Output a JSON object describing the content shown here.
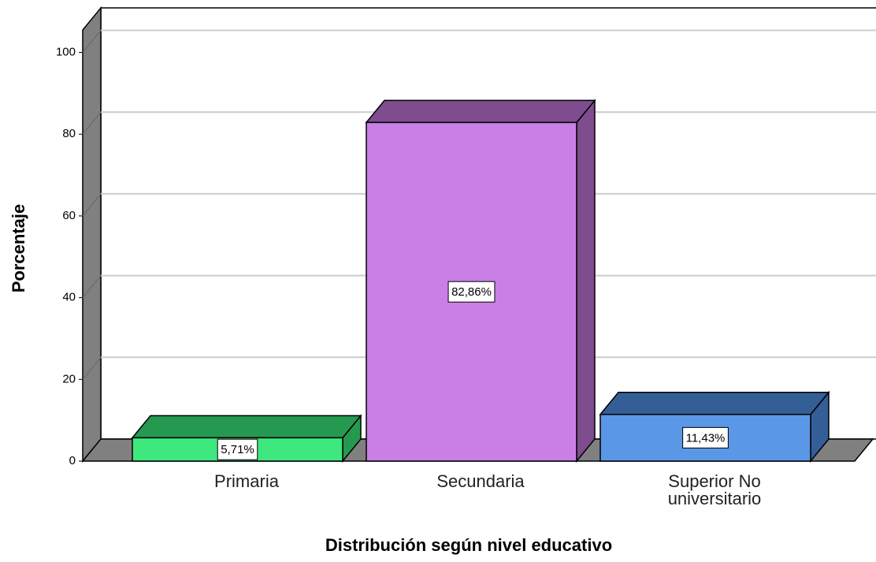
{
  "chart_data": {
    "type": "bar3d",
    "x_label": "Distribución según nivel educativo",
    "y_label": "Porcentaje",
    "categories": [
      "Primaria",
      "Secundaria",
      "Superior No universitario"
    ],
    "values": [
      5.71,
      82.86,
      11.43
    ],
    "value_labels": [
      "5,71%",
      "82,86%",
      "11,43%"
    ],
    "colors": [
      "#3ee87e",
      "#c97fe6",
      "#5b97e7"
    ],
    "top_colors": [
      "#259950",
      "#7f4c8f",
      "#345e96"
    ],
    "ylim": [
      0,
      105.5
    ],
    "yticks": [
      0,
      20,
      40,
      60,
      80,
      100
    ],
    "grid": true
  }
}
